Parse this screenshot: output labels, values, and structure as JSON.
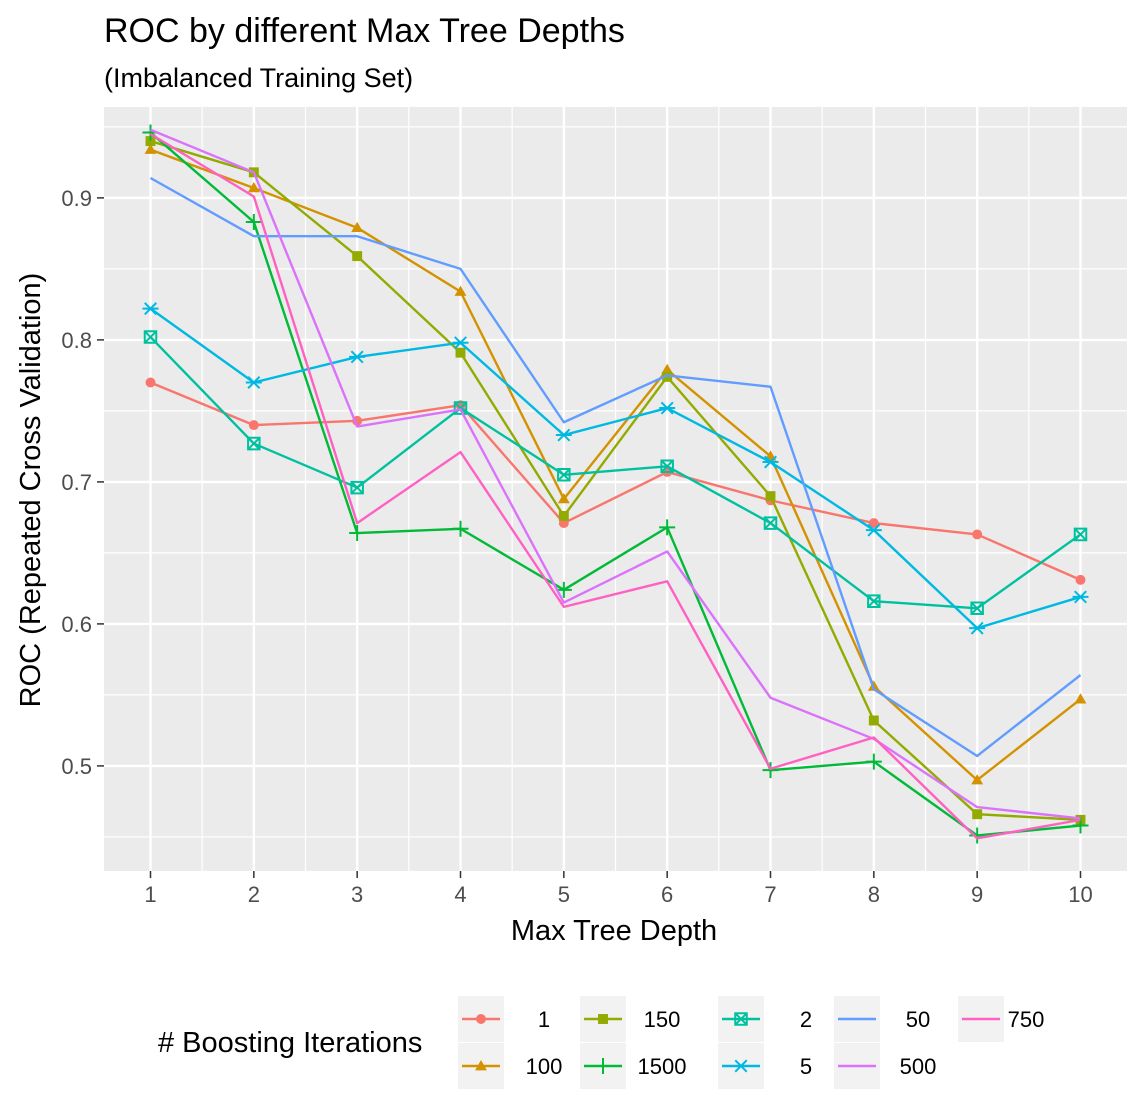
{
  "chart_data": {
    "type": "line",
    "title": "ROC by different Max Tree Depths",
    "subtitle": "(Imbalanced Training Set)",
    "xlabel": "Max Tree Depth",
    "ylabel": "ROC (Repeated Cross Validation)",
    "x": [
      1,
      2,
      3,
      4,
      5,
      6,
      7,
      8,
      9,
      10
    ],
    "xlim": [
      0.55,
      10.45
    ],
    "ylim": [
      0.426,
      0.964
    ],
    "yticks": [
      0.5,
      0.6,
      0.7,
      0.8,
      0.9
    ],
    "grid": true,
    "legend": {
      "title": "# Boosting Iterations",
      "position": "bottom"
    },
    "series": [
      {
        "name": "1",
        "color": "#F8766D",
        "marker": "circle",
        "values": [
          0.77,
          0.74,
          0.743,
          0.754,
          0.671,
          0.707,
          0.687,
          0.671,
          0.663,
          0.631
        ]
      },
      {
        "name": "100",
        "color": "#D39200",
        "marker": "triangle",
        "values": [
          0.934,
          0.907,
          0.879,
          0.834,
          0.688,
          0.779,
          0.718,
          0.556,
          0.49,
          0.547
        ]
      },
      {
        "name": "150",
        "color": "#93AA00",
        "marker": "square",
        "values": [
          0.94,
          0.918,
          0.859,
          0.791,
          0.676,
          0.774,
          0.69,
          0.532,
          0.466,
          0.462
        ]
      },
      {
        "name": "1500",
        "color": "#00BA38",
        "marker": "plus",
        "values": [
          0.946,
          0.883,
          0.664,
          0.667,
          0.624,
          0.668,
          0.497,
          0.503,
          0.451,
          0.458
        ]
      },
      {
        "name": "2",
        "color": "#00C19F",
        "marker": "boxx",
        "values": [
          0.802,
          0.727,
          0.696,
          0.752,
          0.705,
          0.711,
          0.671,
          0.616,
          0.611,
          0.663
        ]
      },
      {
        "name": "5",
        "color": "#00B9E3",
        "marker": "asterisk",
        "values": [
          0.822,
          0.77,
          0.788,
          0.798,
          0.733,
          0.752,
          0.714,
          0.666,
          0.597,
          0.619
        ]
      },
      {
        "name": "50",
        "color": "#619CFF",
        "marker": "none",
        "values": [
          0.914,
          0.873,
          0.873,
          0.85,
          0.742,
          0.775,
          0.767,
          0.554,
          0.507,
          0.564
        ]
      },
      {
        "name": "500",
        "color": "#DB72FB",
        "marker": "none",
        "values": [
          0.948,
          0.918,
          0.739,
          0.751,
          0.615,
          0.651,
          0.548,
          0.519,
          0.471,
          0.463
        ]
      },
      {
        "name": "750",
        "color": "#FF61C3",
        "marker": "none",
        "values": [
          0.945,
          0.901,
          0.671,
          0.721,
          0.612,
          0.63,
          0.498,
          0.52,
          0.449,
          0.462
        ]
      }
    ]
  },
  "colors": {
    "panel_background": "#EBEBEB",
    "grid_major": "#FFFFFF",
    "legend_key_background": "#F2F2F2"
  }
}
